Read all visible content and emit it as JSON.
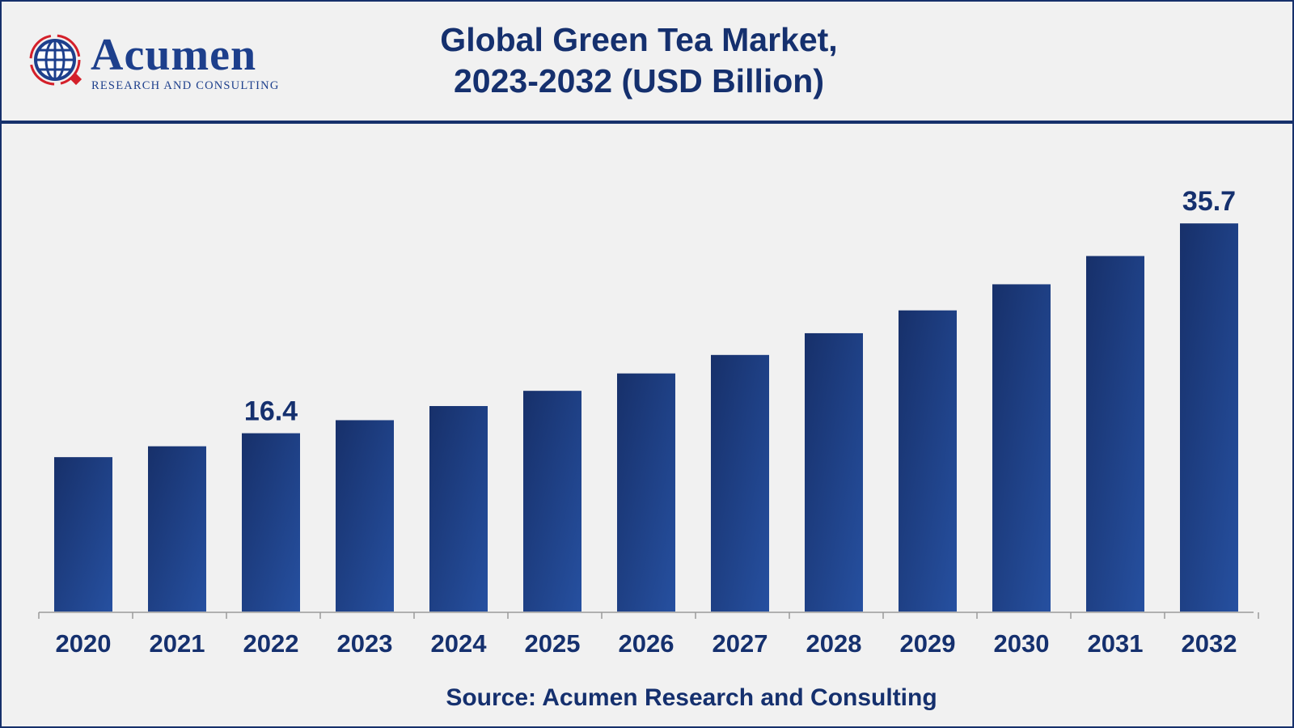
{
  "logo": {
    "name": "Acumen",
    "tagline": "RESEARCH AND CONSULTING"
  },
  "chart_data": {
    "type": "bar",
    "title": "Global Green Tea Market, 2023-2032 (USD Billion)",
    "title_lines": [
      "Global Green Tea Market,",
      "2023-2032 (USD Billion)"
    ],
    "categories": [
      "2020",
      "2021",
      "2022",
      "2023",
      "2024",
      "2025",
      "2026",
      "2027",
      "2028",
      "2029",
      "2030",
      "2031",
      "2032"
    ],
    "values": [
      14.2,
      15.2,
      16.4,
      17.6,
      18.9,
      20.3,
      21.9,
      23.6,
      25.6,
      27.7,
      30.1,
      32.7,
      35.7
    ],
    "data_labels": {
      "2022": "16.4",
      "2032": "35.7"
    },
    "xlabel": "",
    "ylabel": "",
    "ylim": [
      0,
      40
    ],
    "grid": false,
    "bar_color": "#1f438f"
  },
  "source": "Source: Acumen Research and Consulting"
}
